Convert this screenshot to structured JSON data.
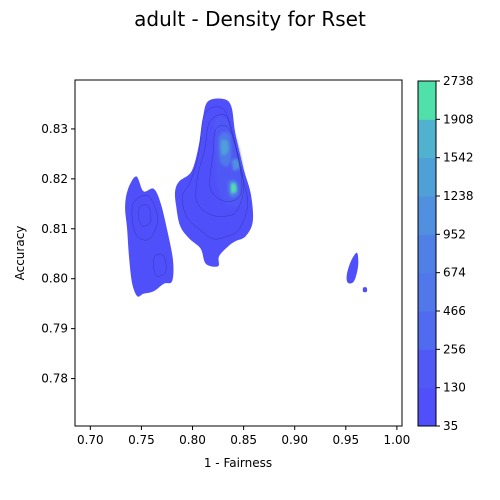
{
  "chart_data": {
    "type": "density",
    "title": "adult - Density for Rset",
    "xlabel": "1 - Fairness",
    "ylabel": "Accuracy",
    "xlim": [
      0.685,
      1.005
    ],
    "ylim": [
      0.7705,
      0.8398
    ],
    "xticks": [
      0.7,
      0.75,
      0.8,
      0.85,
      0.9,
      0.95,
      1.0
    ],
    "xtick_labels": [
      "0.70",
      "0.75",
      "0.80",
      "0.85",
      "0.90",
      "0.95",
      "1.00"
    ],
    "yticks": [
      0.78,
      0.79,
      0.8,
      0.81,
      0.82,
      0.83
    ],
    "ytick_labels": [
      "0.78",
      "0.79",
      "0.80",
      "0.81",
      "0.82",
      "0.83"
    ],
    "colorbar": {
      "levels": [
        35,
        130,
        256,
        466,
        674,
        952,
        1238,
        1542,
        1908,
        2738
      ],
      "level_labels": [
        "35",
        "130",
        "256",
        "466",
        "674",
        "952",
        "1238",
        "1542",
        "1908",
        "2738"
      ],
      "colors": [
        "#5050fa",
        "#5059f5",
        "#506bef",
        "#5078eb",
        "#5080e6",
        "#5090df",
        "#50a0d8",
        "#50b2cf",
        "#50e0aa"
      ]
    },
    "regions": [
      {
        "name": "main-cluster",
        "outline": [
          [
            0.815,
            0.8355
          ],
          [
            0.83,
            0.836
          ],
          [
            0.838,
            0.8345
          ],
          [
            0.842,
            0.829
          ],
          [
            0.85,
            0.822
          ],
          [
            0.857,
            0.817
          ],
          [
            0.859,
            0.8115
          ],
          [
            0.852,
            0.8085
          ],
          [
            0.842,
            0.8075
          ],
          [
            0.835,
            0.8065
          ],
          [
            0.826,
            0.8045
          ],
          [
            0.825,
            0.8025
          ],
          [
            0.813,
            0.803
          ],
          [
            0.808,
            0.806
          ],
          [
            0.797,
            0.808
          ],
          [
            0.788,
            0.8105
          ],
          [
            0.784,
            0.8145
          ],
          [
            0.783,
            0.8175
          ],
          [
            0.787,
            0.8195
          ],
          [
            0.799,
            0.8215
          ],
          [
            0.806,
            0.8265
          ],
          [
            0.81,
            0.832
          ]
        ],
        "level": 0
      },
      {
        "name": "left-cluster",
        "outline": [
          [
            0.737,
            0.818
          ],
          [
            0.745,
            0.8205
          ],
          [
            0.752,
            0.8175
          ],
          [
            0.762,
            0.818
          ],
          [
            0.769,
            0.815
          ],
          [
            0.776,
            0.809
          ],
          [
            0.781,
            0.8035
          ],
          [
            0.78,
            0.7995
          ],
          [
            0.772,
            0.799
          ],
          [
            0.762,
            0.7975
          ],
          [
            0.752,
            0.797
          ],
          [
            0.746,
            0.7965
          ],
          [
            0.741,
            0.799
          ],
          [
            0.738,
            0.804
          ],
          [
            0.736,
            0.81
          ],
          [
            0.734,
            0.8145
          ]
        ],
        "level": 0
      },
      {
        "name": "right-cluster",
        "outline": [
          [
            0.955,
            0.8035
          ],
          [
            0.961,
            0.8052
          ],
          [
            0.962,
            0.8025
          ],
          [
            0.958,
            0.7995
          ],
          [
            0.952,
            0.7992
          ],
          [
            0.951,
            0.8008
          ]
        ],
        "level": 0
      },
      {
        "name": "right-dot",
        "outline": [
          [
            0.967,
            0.7982
          ],
          [
            0.9705,
            0.7982
          ],
          [
            0.9705,
            0.7974
          ],
          [
            0.967,
            0.7974
          ]
        ],
        "level": 0
      },
      {
        "name": "main-core",
        "outline": [
          [
            0.822,
            0.8315
          ],
          [
            0.835,
            0.8315
          ],
          [
            0.845,
            0.826
          ],
          [
            0.851,
            0.8185
          ],
          [
            0.847,
            0.815
          ],
          [
            0.838,
            0.8145
          ],
          [
            0.828,
            0.8165
          ],
          [
            0.823,
            0.8215
          ]
        ],
        "level": 1
      },
      {
        "name": "peak-upper",
        "outline": [
          [
            0.826,
            0.8285
          ],
          [
            0.836,
            0.829
          ],
          [
            0.838,
            0.8245
          ],
          [
            0.834,
            0.8225
          ],
          [
            0.827,
            0.8235
          ]
        ],
        "level": 3
      },
      {
        "name": "peak-upper-core",
        "outline": [
          [
            0.828,
            0.8275
          ],
          [
            0.834,
            0.8275
          ],
          [
            0.835,
            0.8255
          ],
          [
            0.829,
            0.8248
          ]
        ],
        "level": 6
      },
      {
        "name": "peak-lower",
        "outline": [
          [
            0.836,
            0.8195
          ],
          [
            0.843,
            0.8195
          ],
          [
            0.845,
            0.8172
          ],
          [
            0.839,
            0.8162
          ],
          [
            0.835,
            0.8175
          ]
        ],
        "level": 4
      },
      {
        "name": "peak-lower-core",
        "outline": [
          [
            0.838,
            0.819
          ],
          [
            0.842,
            0.819
          ],
          [
            0.843,
            0.8175
          ],
          [
            0.838,
            0.8172
          ]
        ],
        "level": 8
      },
      {
        "name": "peak-mid",
        "outline": [
          [
            0.839,
            0.8238
          ],
          [
            0.845,
            0.8238
          ],
          [
            0.846,
            0.8222
          ],
          [
            0.84,
            0.8218
          ]
        ],
        "level": 5
      }
    ],
    "contour_lines": [
      [
        [
          0.812,
          0.833
        ],
        [
          0.83,
          0.834
        ],
        [
          0.84,
          0.828
        ],
        [
          0.848,
          0.821
        ],
        [
          0.854,
          0.815
        ],
        [
          0.846,
          0.81
        ],
        [
          0.834,
          0.8085
        ],
        [
          0.82,
          0.808
        ],
        [
          0.806,
          0.81
        ],
        [
          0.794,
          0.8125
        ],
        [
          0.79,
          0.8165
        ],
        [
          0.798,
          0.8195
        ],
        [
          0.806,
          0.825
        ]
      ],
      [
        [
          0.817,
          0.8315
        ],
        [
          0.833,
          0.8325
        ],
        [
          0.843,
          0.826
        ],
        [
          0.85,
          0.8185
        ],
        [
          0.843,
          0.8135
        ],
        [
          0.83,
          0.8125
        ],
        [
          0.816,
          0.813
        ],
        [
          0.804,
          0.8155
        ],
        [
          0.805,
          0.8205
        ],
        [
          0.812,
          0.826
        ]
      ],
      [
        [
          0.823,
          0.83
        ],
        [
          0.836,
          0.83
        ],
        [
          0.845,
          0.824
        ],
        [
          0.848,
          0.8175
        ],
        [
          0.838,
          0.8155
        ],
        [
          0.826,
          0.816
        ],
        [
          0.817,
          0.8185
        ],
        [
          0.82,
          0.825
        ]
      ],
      [
        [
          0.743,
          0.8155
        ],
        [
          0.757,
          0.8165
        ],
        [
          0.766,
          0.812
        ],
        [
          0.758,
          0.808
        ],
        [
          0.746,
          0.8085
        ],
        [
          0.741,
          0.812
        ]
      ],
      [
        [
          0.749,
          0.8145
        ],
        [
          0.757,
          0.8145
        ],
        [
          0.759,
          0.8115
        ],
        [
          0.751,
          0.8105
        ],
        [
          0.747,
          0.8125
        ]
      ],
      [
        [
          0.763,
          0.8045
        ],
        [
          0.772,
          0.8045
        ],
        [
          0.774,
          0.8015
        ],
        [
          0.766,
          0.8005
        ],
        [
          0.762,
          0.802
        ]
      ]
    ]
  }
}
